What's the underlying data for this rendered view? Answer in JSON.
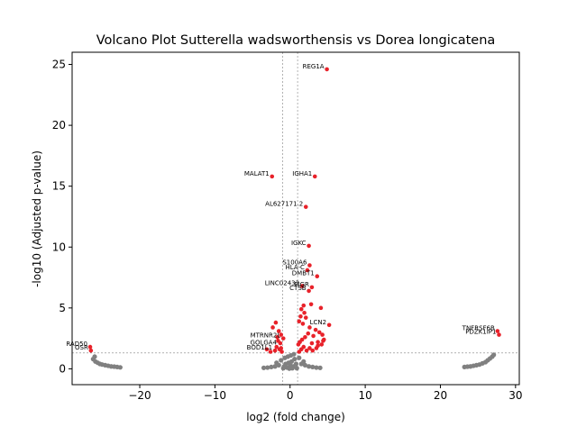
{
  "chart_data": {
    "type": "scatter",
    "title": "Volcano Plot Sutterella wadsworthensis vs Dorea longicatena",
    "xlabel": "log2 (fold change)",
    "ylabel": "-log10 (Adjusted p-value)",
    "xlim": [
      -29,
      30.5
    ],
    "ylim": [
      -1.3,
      26
    ],
    "xticks": [
      -20,
      -10,
      0,
      10,
      20,
      30
    ],
    "yticks": [
      0,
      5,
      10,
      15,
      20,
      25
    ],
    "grid": false,
    "legend": "none",
    "thresholds": {
      "x_neg": -1,
      "x_pos": 1,
      "y": 1.3
    },
    "colors": {
      "significant": "#e8222a",
      "not_significant": "#808080",
      "threshold_line": "#808080"
    },
    "labeled_points": [
      {
        "label": "REG1A",
        "x": 4.9,
        "y": 24.6
      },
      {
        "label": "MALAT1",
        "x": -2.4,
        "y": 15.8
      },
      {
        "label": "IGHA1",
        "x": 3.3,
        "y": 15.8
      },
      {
        "label": "AL627171.2",
        "x": 2.1,
        "y": 13.3
      },
      {
        "label": "IGKC",
        "x": 2.5,
        "y": 10.1
      },
      {
        "label": "S100A6",
        "x": 2.6,
        "y": 8.5
      },
      {
        "label": "HLA-C",
        "x": 2.3,
        "y": 8.1
      },
      {
        "label": "DMBT1",
        "x": 3.6,
        "y": 7.6
      },
      {
        "label": "LINC02432",
        "x": 1.6,
        "y": 6.8
      },
      {
        "label": "PIGR",
        "x": 2.9,
        "y": 6.7
      },
      {
        "label": "CTSB",
        "x": 2.5,
        "y": 6.4
      },
      {
        "label": "LCN2",
        "x": 5.2,
        "y": 3.6
      },
      {
        "label": "TNFRSF6B",
        "x": 27.6,
        "y": 3.1
      },
      {
        "label": "PDZK1IP1",
        "x": 27.8,
        "y": 2.8
      },
      {
        "label": "MTRNR2L",
        "x": -0.9,
        "y": 2.5
      },
      {
        "label": "GOLGA4",
        "x": -1.4,
        "y": 1.9
      },
      {
        "label": "BOD1L1",
        "x": -2.0,
        "y": 1.5
      },
      {
        "label": "RAD50",
        "x": -26.6,
        "y": 1.8
      },
      {
        "label": "OSR",
        "x": -26.5,
        "y": 1.5
      }
    ],
    "significant_points": [
      [
        4.9,
        24.6
      ],
      [
        -2.4,
        15.8
      ],
      [
        3.3,
        15.8
      ],
      [
        2.1,
        13.3
      ],
      [
        2.5,
        10.1
      ],
      [
        2.6,
        8.5
      ],
      [
        2.3,
        8.1
      ],
      [
        3.6,
        7.6
      ],
      [
        1.6,
        6.8
      ],
      [
        2.9,
        6.7
      ],
      [
        2.5,
        6.4
      ],
      [
        4.1,
        5.0
      ],
      [
        2.8,
        5.3
      ],
      [
        1.8,
        5.2
      ],
      [
        1.5,
        4.9
      ],
      [
        1.9,
        4.6
      ],
      [
        1.4,
        4.3
      ],
      [
        2.1,
        4.2
      ],
      [
        1.2,
        3.9
      ],
      [
        1.7,
        3.7
      ],
      [
        5.2,
        3.6
      ],
      [
        2.6,
        3.4
      ],
      [
        3.4,
        3.2
      ],
      [
        3.9,
        3.0
      ],
      [
        4.3,
        2.8
      ],
      [
        4.5,
        2.4
      ],
      [
        3.1,
        2.7
      ],
      [
        3.7,
        2.2
      ],
      [
        4.2,
        2.0
      ],
      [
        2.4,
        2.9
      ],
      [
        2.0,
        2.6
      ],
      [
        1.6,
        2.4
      ],
      [
        1.3,
        2.2
      ],
      [
        1.1,
        2.0
      ],
      [
        1.8,
        1.8
      ],
      [
        2.6,
        1.7
      ],
      [
        3.0,
        1.5
      ],
      [
        3.5,
        1.7
      ],
      [
        2.2,
        1.5
      ],
      [
        1.5,
        1.6
      ],
      [
        1.2,
        1.4
      ],
      [
        -1.1,
        1.4
      ],
      [
        -1.4,
        1.6
      ],
      [
        -1.8,
        1.8
      ],
      [
        -2.0,
        1.5
      ],
      [
        -1.3,
        2.1
      ],
      [
        -0.9,
        2.5
      ],
      [
        -1.6,
        2.3
      ],
      [
        -1.2,
        2.8
      ],
      [
        -1.5,
        3.1
      ],
      [
        -2.3,
        3.4
      ],
      [
        -1.9,
        3.8
      ],
      [
        -1.2,
        1.7
      ],
      [
        -2.6,
        1.4
      ],
      [
        -1.7,
        2.6
      ],
      [
        -3.1,
        1.6
      ],
      [
        27.6,
        3.1
      ],
      [
        27.8,
        2.8
      ],
      [
        -26.6,
        1.8
      ],
      [
        -26.5,
        1.5
      ],
      [
        3.7,
        1.9
      ],
      [
        2.9,
        2.1
      ],
      [
        4.4,
        2.3
      ]
    ],
    "nonsignificant_points": [
      [
        -26.0,
        1.0
      ],
      [
        -26.2,
        0.8
      ],
      [
        -25.9,
        0.6
      ],
      [
        -25.6,
        0.5
      ],
      [
        -25.3,
        0.4
      ],
      [
        -25.0,
        0.35
      ],
      [
        -24.6,
        0.3
      ],
      [
        -24.2,
        0.25
      ],
      [
        -23.8,
        0.2
      ],
      [
        -23.4,
        0.18
      ],
      [
        -23.0,
        0.15
      ],
      [
        -22.6,
        0.12
      ],
      [
        23.2,
        0.15
      ],
      [
        23.6,
        0.18
      ],
      [
        24.0,
        0.2
      ],
      [
        24.4,
        0.25
      ],
      [
        24.8,
        0.3
      ],
      [
        25.2,
        0.35
      ],
      [
        25.6,
        0.45
      ],
      [
        26.0,
        0.55
      ],
      [
        26.3,
        0.7
      ],
      [
        26.6,
        0.85
      ],
      [
        26.9,
        1.0
      ],
      [
        27.1,
        1.15
      ],
      [
        -0.8,
        0.2
      ],
      [
        -0.6,
        0.4
      ],
      [
        -0.4,
        0.1
      ],
      [
        -0.2,
        0.5
      ],
      [
        0.0,
        0.3
      ],
      [
        0.2,
        0.6
      ],
      [
        0.4,
        0.2
      ],
      [
        0.6,
        0.8
      ],
      [
        0.8,
        0.4
      ],
      [
        -0.7,
        0.9
      ],
      [
        -0.3,
        1.0
      ],
      [
        0.1,
        1.1
      ],
      [
        0.5,
        1.2
      ],
      [
        -1.5,
        0.3
      ],
      [
        -2.0,
        0.2
      ],
      [
        -2.5,
        0.15
      ],
      [
        -3.0,
        0.1
      ],
      [
        -3.5,
        0.08
      ],
      [
        1.5,
        0.4
      ],
      [
        2.0,
        0.3
      ],
      [
        2.5,
        0.2
      ],
      [
        3.0,
        0.15
      ],
      [
        3.5,
        0.1
      ],
      [
        4.0,
        0.08
      ],
      [
        -1.2,
        0.7
      ],
      [
        1.2,
        0.9
      ],
      [
        -0.9,
        0.05
      ],
      [
        0.9,
        0.05
      ],
      [
        -1.8,
        0.5
      ],
      [
        1.8,
        0.6
      ],
      [
        -0.1,
        0.02
      ],
      [
        0.3,
        0.05
      ]
    ]
  }
}
